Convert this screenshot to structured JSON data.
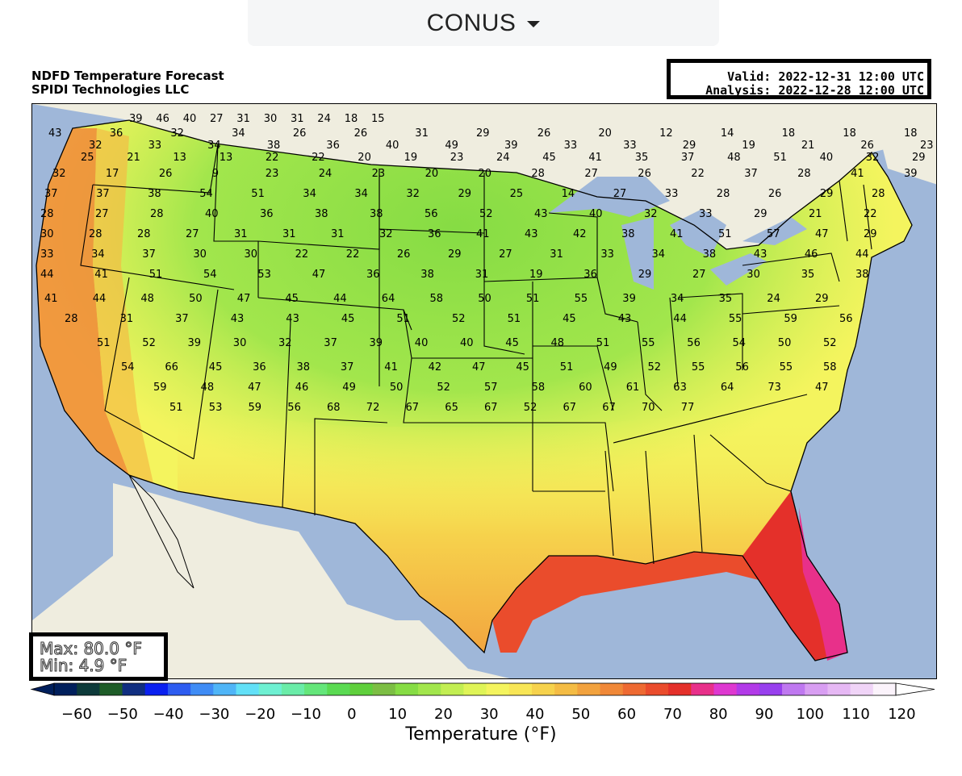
{
  "selector": {
    "label": "CONUS"
  },
  "title": {
    "line1": "NDFD Temperature Forecast",
    "line2": "SPIDI Technologies LLC"
  },
  "times": {
    "valid": "Valid: 2022-12-31 12:00 UTC",
    "analysis": "Analysis: 2022-12-28 12:00 UTC"
  },
  "stats": {
    "max": "Max: 80.0 °F",
    "min": "Min: 4.9 °F"
  },
  "colorbar": {
    "title": "Temperature (°F)",
    "ticks": [
      "−60",
      "−50",
      "−40",
      "−30",
      "−20",
      "−10",
      "0",
      "10",
      "20",
      "30",
      "40",
      "50",
      "60",
      "70",
      "80",
      "90",
      "100",
      "110",
      "120"
    ],
    "colors": [
      "#001f5c",
      "#0d3a3a",
      "#1e5c28",
      "#102e80",
      "#0a20f0",
      "#2d5cf0",
      "#3f8cf5",
      "#4fb5f7",
      "#62e0f7",
      "#6ef0d2",
      "#6aeca8",
      "#64e67a",
      "#5ada52",
      "#5fcf3c",
      "#7cbe44",
      "#86dc44",
      "#a2e64c",
      "#c2ee52",
      "#dff457",
      "#f4f45e",
      "#f8e656",
      "#f6d24c",
      "#f4bc44",
      "#f2a23e",
      "#f08838",
      "#ee6a32",
      "#ea4c2c",
      "#e4302a",
      "#e8308a",
      "#de38d0",
      "#b23ae8",
      "#9840ee",
      "#bf78f0",
      "#d89ef2",
      "#e6b8f4",
      "#f0d4f7",
      "#fbf3fb"
    ]
  },
  "map_labels": [
    "39",
    "46",
    "40",
    "27",
    "31",
    "30",
    "31",
    "24",
    "18",
    "15",
    "43",
    "36",
    "32",
    "34",
    "26",
    "26",
    "31",
    "29",
    "26",
    "20",
    "12",
    "14",
    "18",
    "18",
    "18",
    "32",
    "33",
    "34",
    "38",
    "36",
    "40",
    "49",
    "39",
    "33",
    "33",
    "29",
    "19",
    "21",
    "26",
    "23",
    "25",
    "21",
    "13",
    "13",
    "22",
    "22",
    "20",
    "19",
    "23",
    "24",
    "45",
    "41",
    "35",
    "37",
    "48",
    "51",
    "40",
    "32",
    "29",
    "32",
    "17",
    "26",
    "9",
    "23",
    "24",
    "23",
    "20",
    "20",
    "28",
    "27",
    "26",
    "22",
    "37",
    "28",
    "41",
    "39",
    "37",
    "37",
    "38",
    "54",
    "51",
    "34",
    "34",
    "32",
    "29",
    "25",
    "14",
    "27",
    "33",
    "28",
    "26",
    "29",
    "28",
    "28",
    "27",
    "28",
    "40",
    "36",
    "38",
    "38",
    "56",
    "52",
    "43",
    "40",
    "32",
    "33",
    "29",
    "21",
    "22",
    "30",
    "28",
    "28",
    "27",
    "31",
    "31",
    "31",
    "32",
    "36",
    "41",
    "43",
    "42",
    "38",
    "41",
    "51",
    "57",
    "47",
    "29",
    "33",
    "34",
    "37",
    "30",
    "30",
    "22",
    "22",
    "26",
    "29",
    "27",
    "31",
    "33",
    "34",
    "38",
    "43",
    "46",
    "44",
    "44",
    "41",
    "51",
    "54",
    "53",
    "47",
    "36",
    "38",
    "31",
    "19",
    "36",
    "29",
    "27",
    "30",
    "35",
    "38",
    "41",
    "44",
    "48",
    "50",
    "47",
    "45",
    "44",
    "64",
    "58",
    "50",
    "51",
    "55",
    "39",
    "34",
    "35",
    "24",
    "29",
    "28",
    "31",
    "37",
    "43",
    "43",
    "45",
    "51",
    "52",
    "51",
    "45",
    "43",
    "44",
    "55",
    "59",
    "56",
    "51",
    "52",
    "39",
    "30",
    "32",
    "37",
    "39",
    "40",
    "40",
    "45",
    "48",
    "51",
    "55",
    "56",
    "54",
    "50",
    "52",
    "54",
    "66",
    "45",
    "36",
    "38",
    "37",
    "41",
    "42",
    "47",
    "45",
    "51",
    "49",
    "52",
    "55",
    "56",
    "55",
    "58",
    "59",
    "48",
    "47",
    "46",
    "49",
    "50",
    "52",
    "57",
    "58",
    "60",
    "61",
    "63",
    "64",
    "73",
    "47",
    "51",
    "53",
    "59",
    "56",
    "68",
    "72",
    "67",
    "65",
    "67",
    "52",
    "67",
    "67",
    "70",
    "77"
  ]
}
